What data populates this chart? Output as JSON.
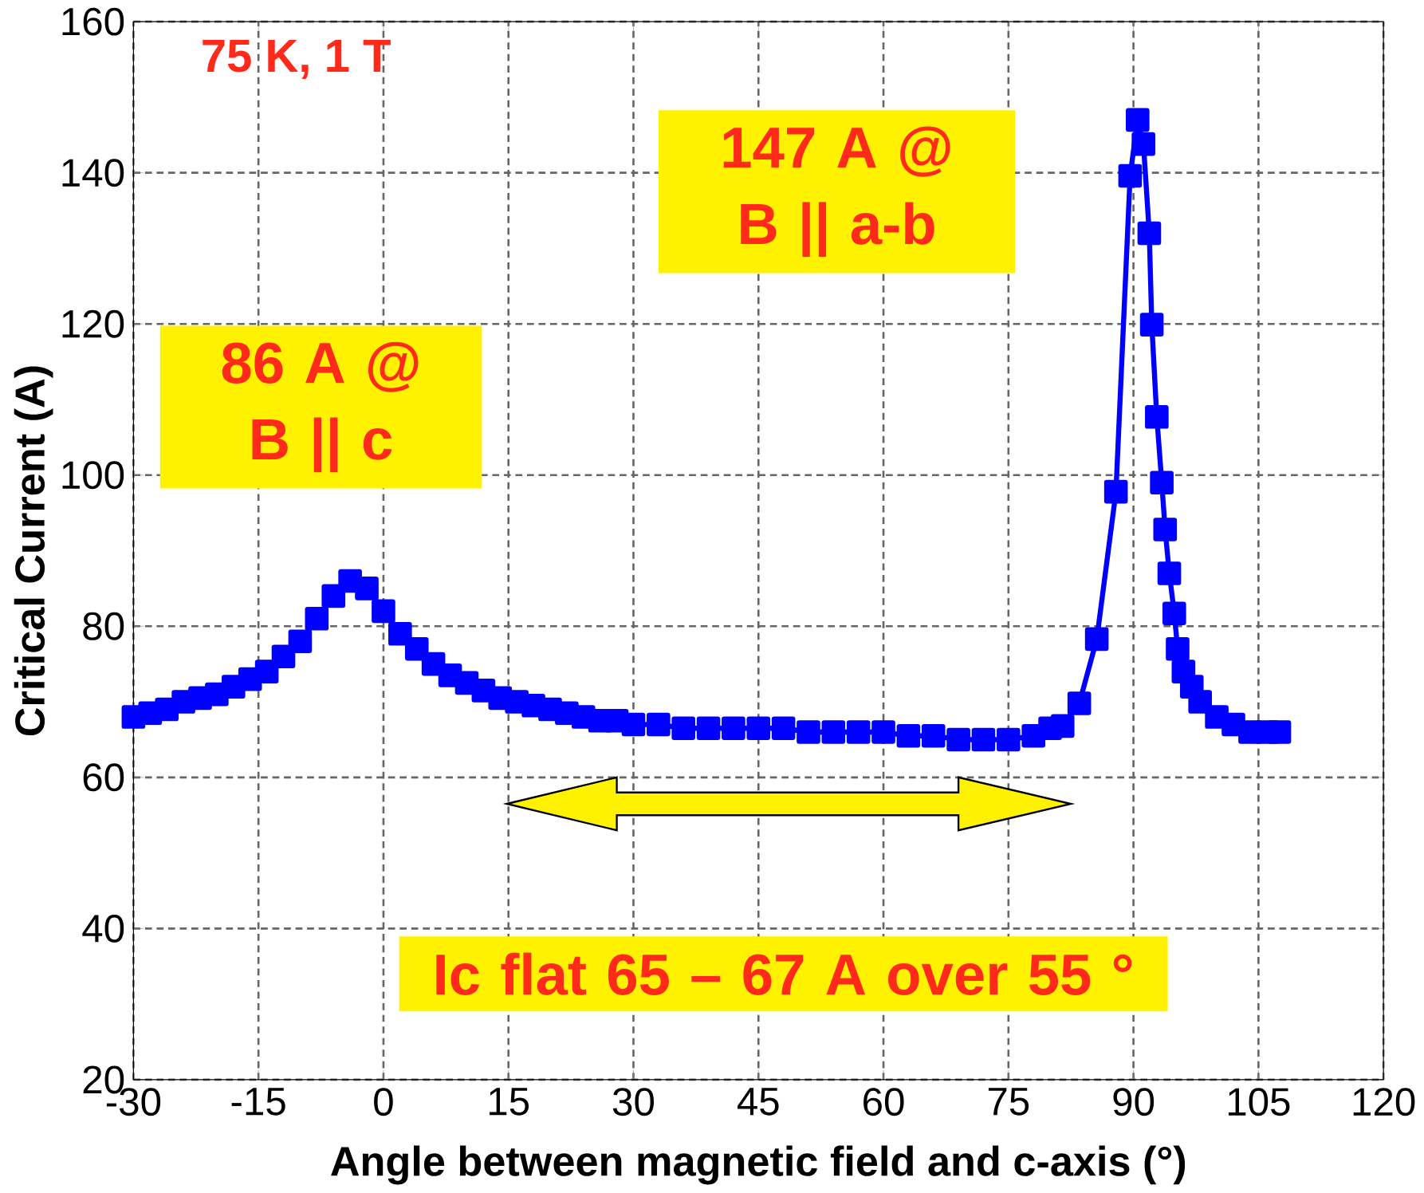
{
  "chart_data": {
    "type": "line",
    "xlabel": "Angle between magnetic field and c-axis (°)",
    "ylabel": "Critical Current (A)",
    "xlim": [
      -30,
      120
    ],
    "xticks": [
      -30,
      -15,
      0,
      15,
      30,
      45,
      60,
      75,
      90,
      105,
      120
    ],
    "ylim": [
      20,
      160
    ],
    "yticks": [
      20,
      40,
      60,
      80,
      100,
      120,
      140,
      160
    ],
    "grid": true,
    "marker": "square",
    "line_style": "solid",
    "annotations": [
      "75 K, 1 T",
      "86 A @ B || c",
      "147 A @ B || a-b",
      "Ic flat 65 – 67 A over 55 °"
    ],
    "x": [
      -30,
      -28,
      -26,
      -24,
      -22,
      -20,
      -18,
      -16,
      -14,
      -12,
      -10,
      -8,
      -6,
      -4,
      -2,
      0,
      2,
      4,
      6,
      8,
      10,
      12,
      14,
      16,
      18,
      20,
      22,
      24,
      26,
      28,
      30,
      33,
      36,
      39,
      42,
      45,
      48,
      51,
      54,
      57,
      60,
      63,
      66,
      69,
      72,
      75,
      78,
      80,
      81.5,
      83.5,
      85.6,
      87.9,
      89.6,
      90.5,
      91.2,
      91.9,
      92.2,
      92.8,
      93.4,
      93.8,
      94.3,
      94.9,
      95.3,
      96,
      97,
      98,
      100,
      102,
      104,
      106,
      107.5
    ],
    "series": [
      {
        "color": "#0000ff",
        "values": [
          68,
          68.5,
          69,
          70,
          70.5,
          71,
          72,
          73,
          74,
          76,
          78,
          81,
          84,
          86,
          85,
          82,
          79,
          77,
          75,
          73.5,
          72.5,
          71.5,
          70.5,
          70,
          69.5,
          69,
          68.5,
          68,
          67.5,
          67.5,
          67,
          67,
          66.5,
          66.5,
          66.5,
          66.5,
          66.5,
          66,
          66,
          66,
          66,
          65.5,
          65.5,
          65,
          65,
          65,
          65.5,
          66.5,
          66.8,
          69.8,
          78.3,
          97.8,
          139.6,
          147,
          143.8,
          132,
          119.9,
          107.7,
          99,
          92.8,
          87,
          81.7,
          77,
          74,
          72,
          70,
          68,
          67,
          66,
          66,
          66
        ]
      }
    ]
  }
}
